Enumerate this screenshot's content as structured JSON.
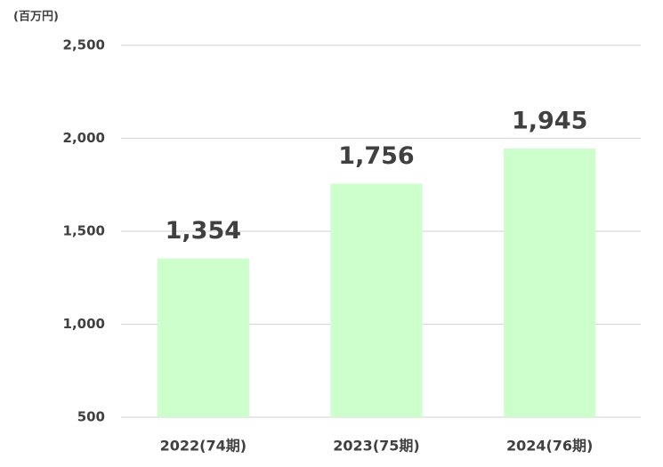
{
  "chart_data": {
    "type": "bar",
    "unit_label": "(百万円)",
    "categories": [
      "2022(74期)",
      "2023(75期)",
      "2024(76期)"
    ],
    "values": [
      1354,
      1756,
      1945
    ],
    "value_labels": [
      "1,354",
      "1,756",
      "1,945"
    ],
    "color": "#ccffcc",
    "ylim": [
      500,
      2500
    ],
    "yticks": [
      500,
      {
        "value": 1000,
        "label": "1,000"
      },
      {
        "value": 1500,
        "label": "1,500"
      },
      {
        "value": 2000,
        "label": "2,000"
      },
      {
        "value": 2500,
        "label": "2,500"
      }
    ],
    "grid": true
  }
}
